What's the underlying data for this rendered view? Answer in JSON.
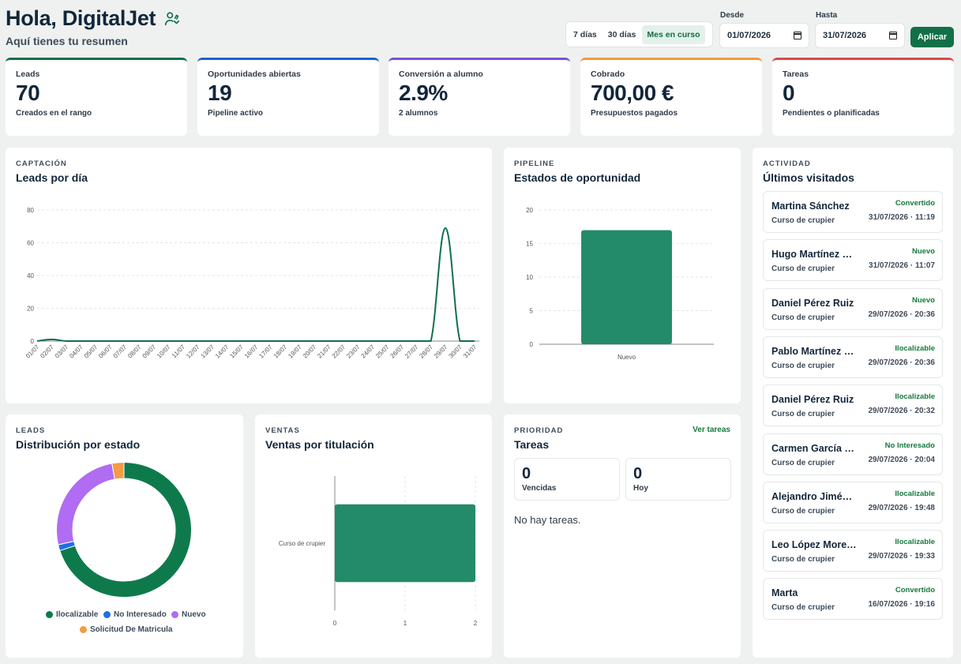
{
  "header": {
    "greeting": "Hola, DigitalJet",
    "subtitle": "Aquí tienes tu resumen"
  },
  "range": {
    "options": [
      "7 días",
      "30 días",
      "Mes en curso"
    ],
    "active": "Mes en curso"
  },
  "dates": {
    "from_label": "Desde",
    "from_value": "01/07/2026",
    "to_label": "Hasta",
    "to_value": "31/07/2026",
    "apply_label": "Aplicar"
  },
  "kpis": [
    {
      "label": "Leads",
      "value": "70",
      "sub": "Creados en el rango",
      "color": "#127048"
    },
    {
      "label": "Oportunidades abiertas",
      "value": "19",
      "sub": "Pipeline activo",
      "color": "#1f5ed6"
    },
    {
      "label": "Conversión a alumno",
      "value": "2.9%",
      "sub": "2 alumnos",
      "color": "#7b4fd6"
    },
    {
      "label": "Cobrado",
      "value": "700,00 €",
      "sub": "Presupuestos pagados",
      "color": "#f09a3e"
    },
    {
      "label": "Tareas",
      "value": "0",
      "sub": "Pendientes o planificadas",
      "color": "#d94b4b"
    }
  ],
  "leads_chart": {
    "eyebrow": "CAPTACIÓN",
    "title": "Leads por día"
  },
  "pipeline_chart": {
    "eyebrow": "PIPELINE",
    "title": "Estados de oportunidad"
  },
  "distribution_chart": {
    "eyebrow": "LEADS",
    "title": "Distribución por estado"
  },
  "sales_chart": {
    "eyebrow": "VENTAS",
    "title": "Ventas por titulación"
  },
  "tasks": {
    "eyebrow": "PRIORIDAD",
    "title": "Tareas",
    "link": "Ver tareas",
    "overdue_count": "0",
    "overdue_label": "Vencidas",
    "today_count": "0",
    "today_label": "Hoy",
    "empty": "No hay tareas."
  },
  "activity": {
    "eyebrow": "ACTIVIDAD",
    "title": "Últimos visitados",
    "items": [
      {
        "name": "Martina Sánchez",
        "course": "Curso de crupier",
        "status": "Convertido",
        "date": "31/07/2026 · 11:19"
      },
      {
        "name": "Hugo Martínez López",
        "course": "Curso de crupier",
        "status": "Nuevo",
        "date": "31/07/2026 · 11:07"
      },
      {
        "name": "Daniel Pérez Ruiz",
        "course": "Curso de crupier",
        "status": "Nuevo",
        "date": "29/07/2026 · 20:36"
      },
      {
        "name": "Pablo Martínez García",
        "course": "Curso de crupier",
        "status": "Ilocalizable",
        "date": "29/07/2026 · 20:36"
      },
      {
        "name": "Daniel Pérez Ruiz",
        "course": "Curso de crupier",
        "status": "Ilocalizable",
        "date": "29/07/2026 · 20:32"
      },
      {
        "name": "Carmen García López",
        "course": "Curso de crupier",
        "status": "No Interesado",
        "date": "29/07/2026 · 20:04"
      },
      {
        "name": "Alejandro Jiménez",
        "course": "Curso de crupier",
        "status": "Ilocalizable",
        "date": "29/07/2026 · 19:48"
      },
      {
        "name": "Leo López Moreno",
        "course": "Curso de crupier",
        "status": "Ilocalizable",
        "date": "29/07/2026 · 19:33"
      },
      {
        "name": "Marta",
        "course": "Curso de crupier",
        "status": "Convertido",
        "date": "16/07/2026 · 19:16"
      }
    ]
  },
  "chart_data": [
    {
      "type": "line",
      "title": "Leads por día",
      "x": [
        "01/07",
        "02/07",
        "03/07",
        "04/07",
        "05/07",
        "06/07",
        "07/07",
        "08/07",
        "09/07",
        "10/07",
        "11/07",
        "12/07",
        "13/07",
        "14/07",
        "15/07",
        "16/07",
        "17/07",
        "18/07",
        "19/07",
        "20/07",
        "21/07",
        "22/07",
        "23/07",
        "24/07",
        "25/07",
        "26/07",
        "27/07",
        "28/07",
        "29/07",
        "30/07",
        "31/07"
      ],
      "values": [
        0,
        1,
        0,
        0,
        0,
        0,
        0,
        0,
        0,
        0,
        0,
        0,
        0,
        0,
        0,
        0,
        0,
        0,
        0,
        0,
        0,
        0,
        0,
        0,
        0,
        0,
        0,
        0,
        69,
        0,
        0
      ],
      "ylim": [
        0,
        80
      ],
      "yticks": [
        0,
        20,
        40,
        60,
        80
      ],
      "grid": true,
      "color": "#127048"
    },
    {
      "type": "bar",
      "title": "Estados de oportunidad",
      "categories": [
        "Nuevo"
      ],
      "values": [
        17
      ],
      "ylim": [
        0,
        20
      ],
      "yticks": [
        0,
        5,
        10,
        15,
        20
      ],
      "grid": true,
      "color": "#238b6a"
    },
    {
      "type": "pie",
      "title": "Distribución por estado",
      "categories": [
        "Ilocalizable",
        "No Interesado",
        "Nuevo",
        "Solicitud De Matricula"
      ],
      "values": [
        49,
        1,
        18,
        2
      ],
      "colors": [
        "#0e7a4c",
        "#1f6fe0",
        "#b06cf2",
        "#f39b45"
      ],
      "legend": "bottom"
    },
    {
      "type": "bar",
      "orientation": "horizontal",
      "title": "Ventas por titulación",
      "categories": [
        "Curso de crupier"
      ],
      "values": [
        2
      ],
      "xlim": [
        0,
        2
      ],
      "xticks": [
        0,
        1,
        2
      ],
      "grid": true,
      "color": "#238b6a"
    }
  ]
}
